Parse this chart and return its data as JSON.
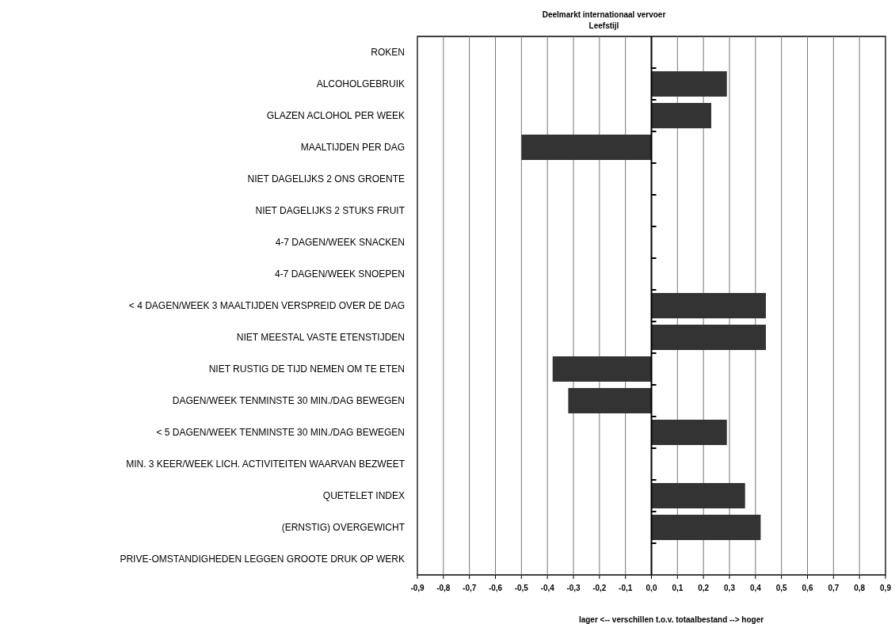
{
  "chart_data": {
    "type": "bar",
    "orientation": "horizontal",
    "title": "Deelmarkt internationaal vervoer",
    "subtitle": "Leefstijl",
    "xlabel": "lager <-- verschillen t.o.v. totaalbestand --> hoger",
    "categories": [
      "ROKEN",
      "ALCOHOLGEBRUIK",
      "GLAZEN ACLOHOL PER WEEK",
      "MAALTIJDEN PER DAG",
      "NIET DAGELIJKS 2 ONS GROENTE",
      "NIET DAGELIJKS 2 STUKS FRUIT",
      "4-7 DAGEN/WEEK SNACKEN",
      "4-7 DAGEN/WEEK SNOEPEN",
      "< 4 DAGEN/WEEK 3 MAALTIJDEN VERSPREID OVER DE DAG",
      "NIET MEESTAL VASTE ETENSTIJDEN",
      "NIET RUSTIG DE TIJD NEMEN OM TE ETEN",
      "DAGEN/WEEK TENMINSTE 30 MIN./DAG BEWEGEN",
      "< 5 DAGEN/WEEK TENMINSTE 30 MIN./DAG BEWEGEN",
      "MIN. 3 KEER/WEEK LICH. ACTIVITEITEN WAARVAN BEZWEET",
      "QUETELET INDEX",
      "(ERNSTIG) OVERGEWICHT",
      "PRIVE-OMSTANDIGHEDEN LEGGEN GROOTE DRUK OP WERK"
    ],
    "values": [
      null,
      0.29,
      0.23,
      -0.5,
      null,
      null,
      null,
      null,
      0.44,
      0.44,
      -0.38,
      -0.32,
      0.29,
      null,
      0.36,
      0.42,
      null
    ],
    "color": "#333333",
    "xlim": [
      -0.9,
      0.9
    ],
    "xticks": [
      {
        "value": -0.9,
        "label": "-0,9"
      },
      {
        "value": -0.8,
        "label": "-0,8"
      },
      {
        "value": -0.7,
        "label": "-0,7"
      },
      {
        "value": -0.6,
        "label": "-0,6"
      },
      {
        "value": -0.5,
        "label": "-0,5"
      },
      {
        "value": -0.4,
        "label": "-0,4"
      },
      {
        "value": -0.3,
        "label": "-0,3"
      },
      {
        "value": -0.2,
        "label": "-0,2"
      },
      {
        "value": -0.1,
        "label": "-0,1"
      },
      {
        "value": 0,
        "label": "0,0"
      },
      {
        "value": 0.1,
        "label": "0,1"
      },
      {
        "value": 0.2,
        "label": "0,2"
      },
      {
        "value": 0.3,
        "label": "0,3"
      },
      {
        "value": 0.4,
        "label": "0,4"
      },
      {
        "value": 0.5,
        "label": "0,5"
      },
      {
        "value": 0.6,
        "label": "0,6"
      },
      {
        "value": 0.7,
        "label": "0,7"
      },
      {
        "value": 0.8,
        "label": "0,8"
      },
      {
        "value": 0.9,
        "label": "0,9"
      }
    ],
    "grid": "x"
  }
}
